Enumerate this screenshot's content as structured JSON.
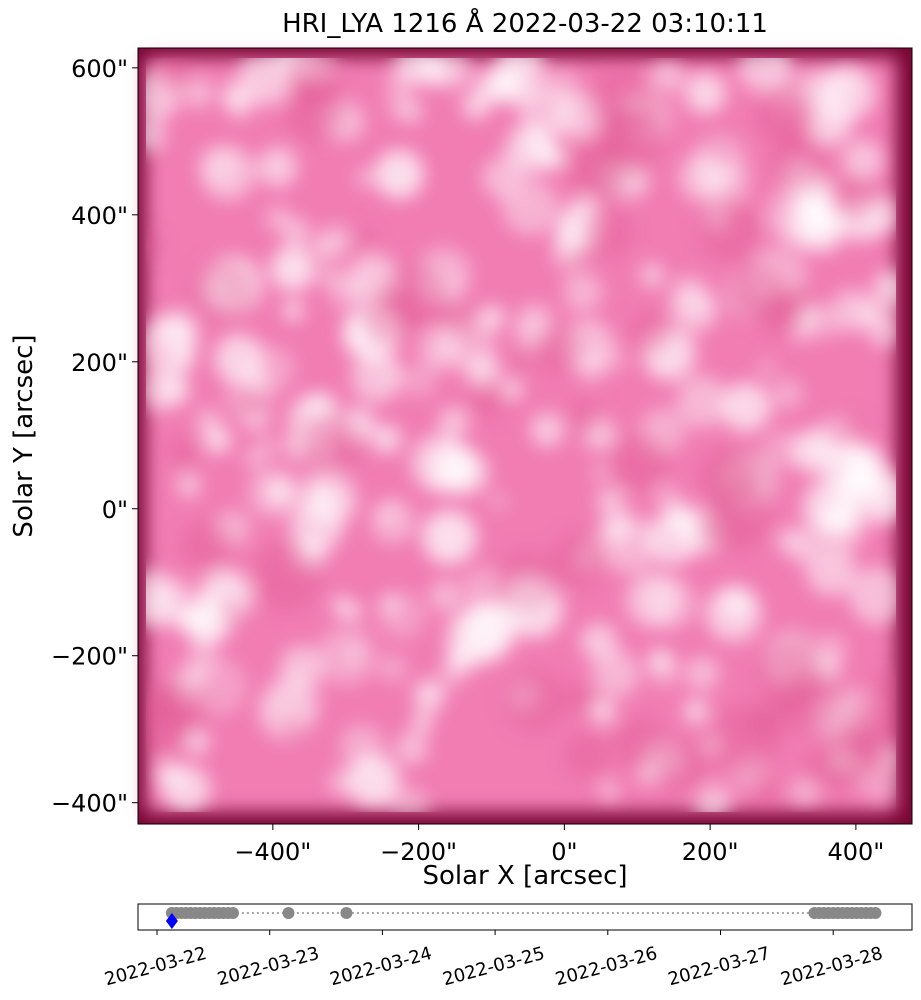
{
  "chart_data": [
    {
      "type": "image",
      "title": "HRI_LYA 1216 Å 2022-03-22 03:10:11",
      "xlabel": "Solar X [arcsec]",
      "ylabel": "Solar Y [arcsec]",
      "xlim": [
        -585,
        477
      ],
      "ylim": [
        -429,
        627
      ],
      "xticks": [
        {
          "value": -400,
          "label": "−400\""
        },
        {
          "value": -200,
          "label": "−200\""
        },
        {
          "value": 0,
          "label": "0\""
        },
        {
          "value": 200,
          "label": "200\""
        },
        {
          "value": 400,
          "label": "400\""
        }
      ],
      "yticks": [
        {
          "value": -400,
          "label": "−400\""
        },
        {
          "value": -200,
          "label": "−200\""
        },
        {
          "value": 0,
          "label": "0\""
        },
        {
          "value": 200,
          "label": "200\""
        },
        {
          "value": 400,
          "label": "400\""
        },
        {
          "value": 600,
          "label": "600\""
        }
      ],
      "color": "#f17db3",
      "edge_color": "#7a0535"
    },
    {
      "type": "timeline",
      "xlim": [
        "2022-03-21T19:57",
        "2022-03-28T16:47"
      ],
      "xticks": [
        "2022-03-22",
        "2022-03-23",
        "2022-03-24",
        "2022-03-25",
        "2022-03-26",
        "2022-03-27",
        "2022-03-28"
      ],
      "observations": [
        "2022-03-22T03:10",
        "2022-03-22T04:10",
        "2022-03-22T05:10",
        "2022-03-22T06:10",
        "2022-03-22T07:10",
        "2022-03-22T08:10",
        "2022-03-22T09:10",
        "2022-03-22T10:10",
        "2022-03-22T11:10",
        "2022-03-22T12:10",
        "2022-03-22T13:10",
        "2022-03-22T14:10",
        "2022-03-22T15:10",
        "2022-03-22T16:10",
        "2022-03-23T04:00",
        "2022-03-23T16:20",
        "2022-03-27T20:00",
        "2022-03-27T21:00",
        "2022-03-27T22:00",
        "2022-03-27T23:00",
        "2022-03-28T00:00",
        "2022-03-28T01:00",
        "2022-03-28T02:00",
        "2022-03-28T03:00",
        "2022-03-28T04:00",
        "2022-03-28T05:00",
        "2022-03-28T06:00",
        "2022-03-28T07:00",
        "2022-03-28T08:00",
        "2022-03-28T09:00"
      ],
      "current": "2022-03-22T03:10:11",
      "color": "#888888",
      "current_color": "#0000ff"
    }
  ]
}
